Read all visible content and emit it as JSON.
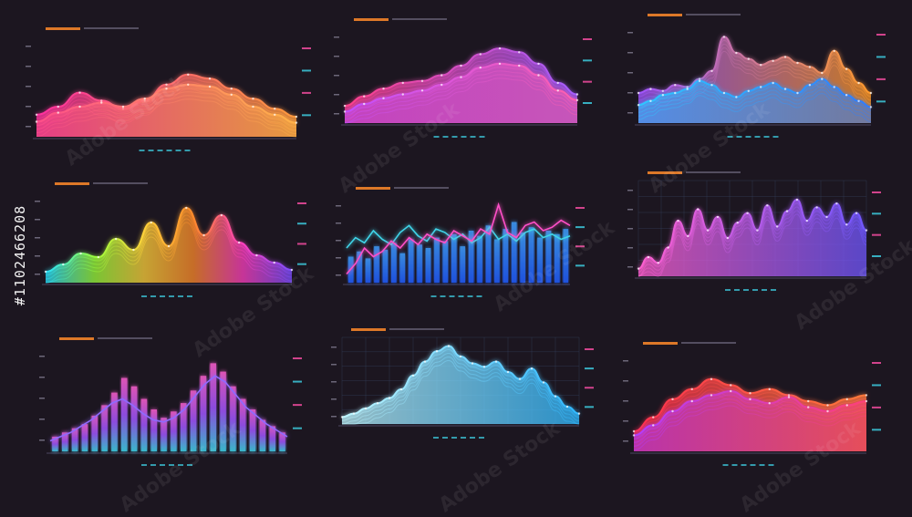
{
  "stock_id": "#1102466208",
  "watermark": "Adobe Stock",
  "colors": {
    "background": "#1c1620",
    "hud_cyan": "#3fd4e8",
    "hud_orange": "#ff8a2a",
    "hud_pink": "#ff4fa8"
  },
  "chart_data": [
    {
      "type": "area",
      "style": "neon-wave",
      "x": [
        0,
        1,
        2,
        3,
        4,
        5,
        6,
        7,
        8,
        9,
        10,
        11,
        12
      ],
      "series": [
        {
          "values": [
            22,
            30,
            44,
            36,
            28,
            36,
            52,
            62,
            58,
            48,
            38,
            28,
            20
          ],
          "colors": [
            "#ff2fa0",
            "#ff9a3c"
          ]
        },
        {
          "values": [
            15,
            24,
            30,
            34,
            30,
            38,
            48,
            52,
            50,
            42,
            30,
            22,
            14
          ],
          "colors": [
            "#ff4f8a",
            "#ffb347"
          ]
        }
      ],
      "ylim": [
        0,
        100
      ],
      "grid": false
    },
    {
      "type": "area",
      "style": "neon-wave",
      "x": [
        0,
        1,
        2,
        3,
        4,
        5,
        6,
        7,
        8,
        9,
        10,
        11,
        12
      ],
      "series": [
        {
          "values": [
            18,
            28,
            36,
            42,
            44,
            50,
            60,
            72,
            78,
            74,
            62,
            42,
            30
          ],
          "colors": [
            "#ff3f8a",
            "#a35cff"
          ]
        },
        {
          "values": [
            12,
            20,
            26,
            30,
            34,
            40,
            48,
            58,
            62,
            60,
            50,
            34,
            24
          ],
          "colors": [
            "#c24fff",
            "#ff5fae"
          ]
        }
      ],
      "ylim": [
        0,
        100
      ],
      "grid": false
    },
    {
      "type": "area",
      "style": "neon-spikes",
      "x": [
        0,
        1,
        2,
        3,
        4,
        5,
        6,
        7,
        8,
        9,
        10,
        11,
        12,
        13,
        14,
        15,
        16,
        17,
        18,
        19
      ],
      "series": [
        {
          "values": [
            30,
            34,
            32,
            38,
            36,
            44,
            52,
            86,
            70,
            64,
            58,
            62,
            66,
            60,
            56,
            50,
            72,
            54,
            40,
            30
          ],
          "colors": [
            "#a055ff",
            "#ff9a2a"
          ]
        },
        {
          "values": [
            18,
            22,
            28,
            30,
            34,
            42,
            38,
            30,
            26,
            32,
            36,
            40,
            34,
            30,
            38,
            44,
            36,
            28,
            22,
            16
          ],
          "colors": [
            "#2fc8ff",
            "#2f7bff"
          ]
        }
      ],
      "ylim": [
        0,
        100
      ],
      "grid": false
    },
    {
      "type": "area",
      "style": "rainbow-peaks",
      "x": [
        0,
        1,
        2,
        3,
        4,
        5,
        6,
        7,
        8,
        9,
        10,
        11,
        12,
        13,
        14
      ],
      "series": [
        {
          "values": [
            12,
            20,
            32,
            28,
            48,
            36,
            66,
            40,
            82,
            52,
            74,
            44,
            30,
            22,
            14
          ],
          "colors": [
            "#27e0ff",
            "#9bff3a",
            "#ffd23a",
            "#ff8a2a",
            "#ff3fbf",
            "#7b4dff"
          ]
        }
      ],
      "ylim": [
        0,
        100
      ],
      "grid": false
    },
    {
      "type": "bar",
      "style": "bars-with-lines",
      "values": [
        30,
        36,
        28,
        42,
        38,
        46,
        34,
        50,
        44,
        40,
        52,
        48,
        56,
        42,
        60,
        54,
        66,
        50,
        62,
        70,
        58,
        64,
        52,
        60,
        56,
        62
      ],
      "lines": [
        {
          "values": [
            40,
            52,
            46,
            60,
            50,
            44,
            58,
            66,
            54,
            48,
            62,
            58,
            50,
            56,
            46,
            52,
            64,
            50,
            56,
            48,
            58,
            62,
            52,
            56,
            50,
            54
          ],
          "color": "#3fd4e8"
        },
        {
          "values": [
            10,
            22,
            40,
            30,
            36,
            48,
            40,
            52,
            44,
            56,
            50,
            46,
            60,
            54,
            48,
            62,
            56,
            90,
            58,
            52,
            66,
            70,
            60,
            64,
            72,
            66
          ],
          "color": "#ff4fc8"
        }
      ],
      "ylim": [
        0,
        100
      ],
      "grid": false
    },
    {
      "type": "area",
      "style": "grid-spikes",
      "x": [
        0,
        1,
        2,
        3,
        4,
        5,
        6,
        7,
        8,
        9,
        10,
        11,
        12,
        13,
        14,
        15,
        16,
        17,
        18,
        19,
        20,
        21,
        22,
        23
      ],
      "series": [
        {
          "values": [
            8,
            20,
            14,
            30,
            58,
            42,
            70,
            48,
            62,
            40,
            56,
            66,
            48,
            74,
            52,
            68,
            80,
            58,
            72,
            62,
            76,
            54,
            66,
            48
          ],
          "colors": [
            "#ff5fd0",
            "#6f57ff"
          ]
        }
      ],
      "ylim": [
        0,
        100
      ],
      "grid": true
    },
    {
      "type": "bar",
      "style": "neon-bars-area",
      "values": [
        14,
        18,
        22,
        26,
        34,
        44,
        56,
        70,
        62,
        50,
        40,
        32,
        38,
        46,
        58,
        72,
        84,
        76,
        62,
        50,
        40,
        30,
        24,
        18
      ],
      "colors": [
        "#ff5fd0",
        "#a055ff",
        "#3fd4e8"
      ],
      "lines": [
        {
          "values": [
            10,
            14,
            18,
            24,
            30,
            38,
            46,
            50,
            44,
            36,
            30,
            28,
            32,
            40,
            52,
            64,
            72,
            66,
            54,
            42,
            34,
            26,
            20,
            14
          ],
          "color": "#8f6bff"
        }
      ],
      "ylim": [
        0,
        100
      ],
      "grid": false
    },
    {
      "type": "area",
      "style": "glow-mountain",
      "x": [
        0,
        1,
        2,
        3,
        4,
        5,
        6,
        7,
        8,
        9,
        10,
        11,
        12,
        13,
        14,
        15,
        16,
        17,
        18,
        19,
        20
      ],
      "series": [
        {
          "values": [
            8,
            12,
            18,
            24,
            30,
            40,
            56,
            72,
            84,
            90,
            78,
            70,
            66,
            72,
            60,
            52,
            64,
            48,
            32,
            20,
            12
          ],
          "colors": [
            "#bff6ff",
            "#2fb8ff"
          ]
        }
      ],
      "ylim": [
        0,
        100
      ],
      "grid": true
    },
    {
      "type": "area",
      "style": "red-ribbon",
      "x": [
        0,
        1,
        2,
        3,
        4,
        5,
        6,
        7,
        8,
        9,
        10,
        11,
        12
      ],
      "series": [
        {
          "values": [
            20,
            34,
            52,
            62,
            72,
            66,
            58,
            62,
            56,
            50,
            46,
            52,
            56
          ],
          "colors": [
            "#ff2f4f",
            "#ff7a3a"
          ]
        },
        {
          "values": [
            16,
            26,
            40,
            50,
            56,
            60,
            52,
            48,
            54,
            44,
            40,
            46,
            50
          ],
          "colors": [
            "#b03cff",
            "#ff3f7a"
          ]
        }
      ],
      "ylim": [
        0,
        100
      ],
      "grid": false
    }
  ]
}
